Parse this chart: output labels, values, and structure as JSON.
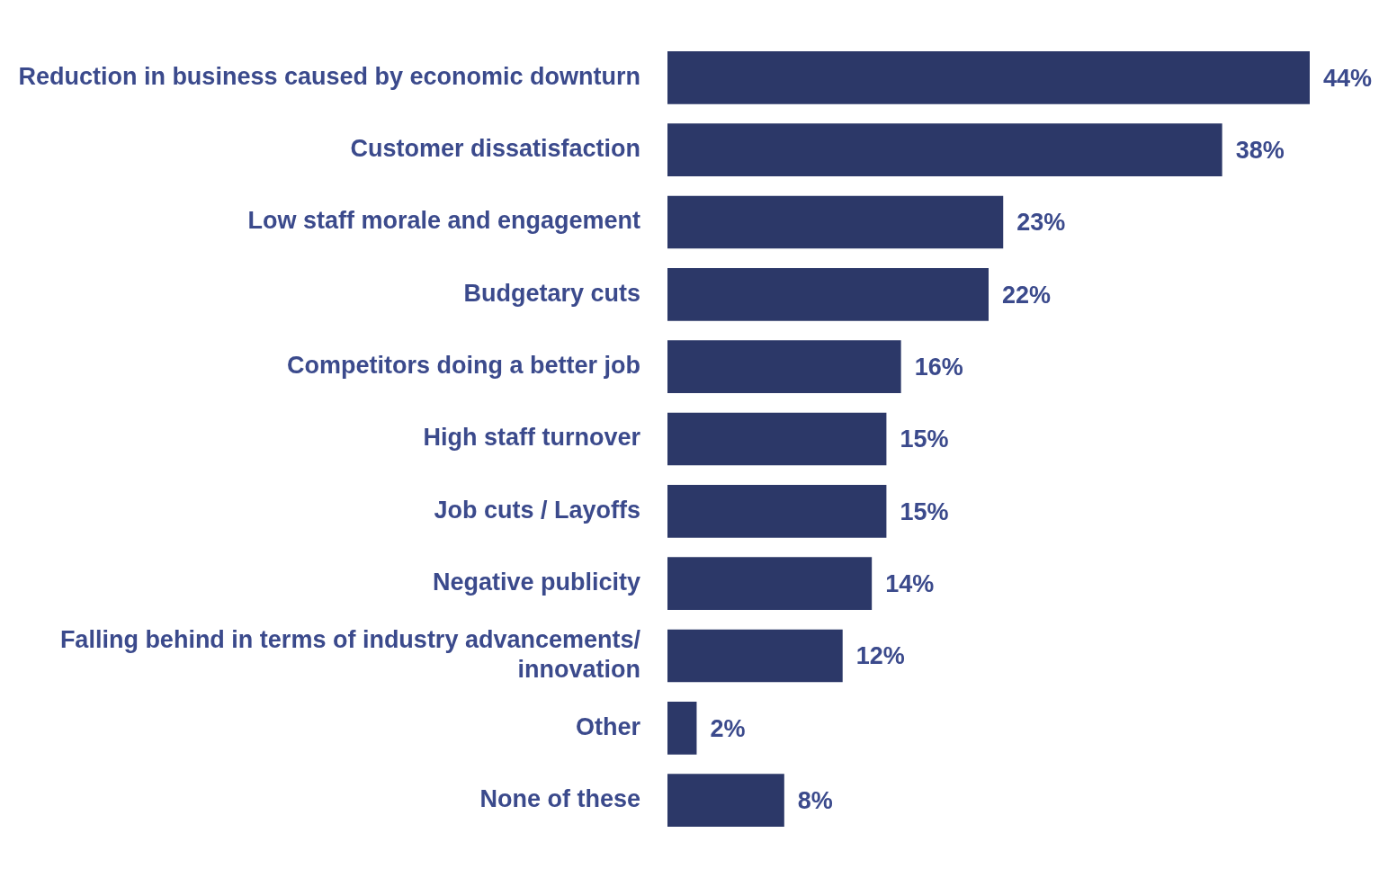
{
  "chart_data": {
    "type": "bar",
    "orientation": "horizontal",
    "categories": [
      "Reduction in business caused by economic downturn",
      "Customer dissatisfaction",
      "Low staff morale and engagement",
      "Budgetary cuts",
      "Competitors doing a better job",
      "High staff turnover",
      "Job cuts / Layoffs",
      "Negative publicity",
      "Falling behind in terms of industry advancements/ innovation",
      "Other",
      "None of these"
    ],
    "values": [
      44,
      38,
      23,
      22,
      16,
      15,
      15,
      14,
      12,
      2,
      8
    ],
    "value_labels": [
      "44%",
      "38%",
      "23%",
      "22%",
      "16%",
      "15%",
      "15%",
      "14%",
      "12%",
      "2%",
      "8%"
    ],
    "color": "#2c3868",
    "grid": false,
    "legend": false
  }
}
